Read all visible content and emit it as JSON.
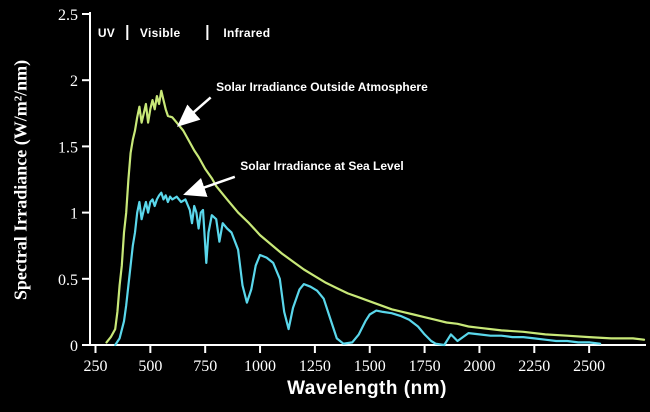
{
  "chart_data": {
    "type": "line",
    "title": "",
    "xlabel": "Wavelength (nm)",
    "ylabel": "Spectral Irradiance (W/m²/nm)",
    "xlim": [
      225,
      2750
    ],
    "ylim": [
      0,
      2.5
    ],
    "x_ticks": [
      250,
      500,
      750,
      1000,
      1250,
      1500,
      1750,
      2000,
      2250,
      2500
    ],
    "y_ticks": [
      0,
      0.5,
      1,
      1.5,
      2,
      2.5
    ],
    "y_tick_labels": [
      "0",
      "0.5",
      "1",
      "1.5",
      "2",
      "2.5"
    ],
    "grid": false,
    "legend_position": "none",
    "background_color": "#000000",
    "axis_color": "#ffffff",
    "text_color": "#ffffff",
    "spectral_bands": {
      "labels": [
        {
          "text": "UV",
          "x": 300
        },
        {
          "text": "Visible",
          "x": 545
        },
        {
          "text": "Infrared",
          "x": 940
        }
      ],
      "separators_x": [
        395,
        760
      ]
    },
    "series": [
      {
        "name": "Solar Irradiance Outside Atmosphere",
        "color": "#c8e878",
        "x": [
          300,
          320,
          340,
          350,
          360,
          370,
          380,
          390,
          400,
          410,
          420,
          430,
          440,
          450,
          460,
          470,
          480,
          490,
          500,
          510,
          520,
          530,
          540,
          550,
          560,
          570,
          580,
          600,
          620,
          650,
          680,
          700,
          720,
          750,
          780,
          800,
          850,
          900,
          950,
          1000,
          1050,
          1100,
          1150,
          1200,
          1250,
          1300,
          1350,
          1400,
          1450,
          1500,
          1550,
          1600,
          1650,
          1700,
          1750,
          1800,
          1850,
          1900,
          1950,
          2000,
          2100,
          2200,
          2300,
          2400,
          2500,
          2600,
          2700,
          2750
        ],
        "y": [
          0.02,
          0.06,
          0.12,
          0.25,
          0.45,
          0.6,
          0.85,
          1.0,
          1.25,
          1.45,
          1.55,
          1.62,
          1.72,
          1.8,
          1.68,
          1.75,
          1.82,
          1.68,
          1.78,
          1.85,
          1.78,
          1.88,
          1.82,
          1.92,
          1.85,
          1.78,
          1.73,
          1.72,
          1.68,
          1.62,
          1.53,
          1.47,
          1.42,
          1.33,
          1.26,
          1.2,
          1.1,
          1.0,
          0.92,
          0.83,
          0.76,
          0.69,
          0.63,
          0.57,
          0.52,
          0.47,
          0.43,
          0.39,
          0.36,
          0.33,
          0.3,
          0.27,
          0.25,
          0.23,
          0.21,
          0.19,
          0.17,
          0.16,
          0.14,
          0.13,
          0.11,
          0.1,
          0.08,
          0.07,
          0.06,
          0.05,
          0.05,
          0.04
        ]
      },
      {
        "name": "Solar Irradiance at Sea Level",
        "color": "#5ad7eb",
        "x": [
          340,
          360,
          380,
          390,
          400,
          410,
          420,
          430,
          440,
          450,
          460,
          470,
          480,
          490,
          500,
          510,
          520,
          530,
          540,
          550,
          560,
          570,
          580,
          590,
          600,
          620,
          640,
          660,
          680,
          690,
          700,
          710,
          720,
          730,
          740,
          755,
          765,
          780,
          800,
          815,
          830,
          850,
          870,
          900,
          920,
          940,
          960,
          980,
          1000,
          1030,
          1060,
          1090,
          1110,
          1130,
          1150,
          1180,
          1200,
          1230,
          1260,
          1290,
          1320,
          1350,
          1380,
          1420,
          1450,
          1480,
          1500,
          1530,
          1560,
          1600,
          1640,
          1680,
          1720,
          1750,
          1780,
          1800,
          1840,
          1870,
          1900,
          1950,
          2000,
          2050,
          2100,
          2150,
          2200,
          2250,
          2300,
          2350,
          2400,
          2450,
          2500,
          2550
        ],
        "y": [
          0.0,
          0.05,
          0.18,
          0.3,
          0.45,
          0.6,
          0.75,
          0.85,
          1.0,
          1.08,
          0.95,
          1.02,
          1.08,
          1.0,
          1.08,
          1.1,
          1.05,
          1.1,
          1.13,
          1.15,
          1.1,
          1.13,
          1.08,
          1.12,
          1.1,
          1.12,
          1.08,
          1.1,
          1.02,
          0.92,
          1.05,
          1.0,
          0.88,
          1.0,
          1.02,
          0.62,
          0.85,
          0.98,
          0.95,
          0.78,
          0.92,
          0.88,
          0.85,
          0.72,
          0.45,
          0.32,
          0.42,
          0.6,
          0.68,
          0.66,
          0.62,
          0.5,
          0.25,
          0.12,
          0.28,
          0.42,
          0.46,
          0.44,
          0.41,
          0.35,
          0.2,
          0.05,
          0.01,
          0.02,
          0.08,
          0.18,
          0.23,
          0.26,
          0.25,
          0.24,
          0.22,
          0.19,
          0.14,
          0.08,
          0.03,
          0.01,
          0.0,
          0.08,
          0.03,
          0.09,
          0.08,
          0.07,
          0.07,
          0.06,
          0.06,
          0.05,
          0.04,
          0.03,
          0.03,
          0.02,
          0.02,
          0.01
        ]
      }
    ],
    "annotations": [
      {
        "text": "Solar Irradiance Outside Atmosphere",
        "text_x": 800,
        "text_y": 1.92,
        "arrow_from_x": 775,
        "arrow_from_y": 1.87,
        "arrow_to_x": 630,
        "arrow_to_y": 1.66
      },
      {
        "text": "Solar Irradiance at Sea Level",
        "text_x": 910,
        "text_y": 1.32,
        "arrow_from_x": 885,
        "arrow_from_y": 1.27,
        "arrow_to_x": 660,
        "arrow_to_y": 1.14
      }
    ]
  }
}
